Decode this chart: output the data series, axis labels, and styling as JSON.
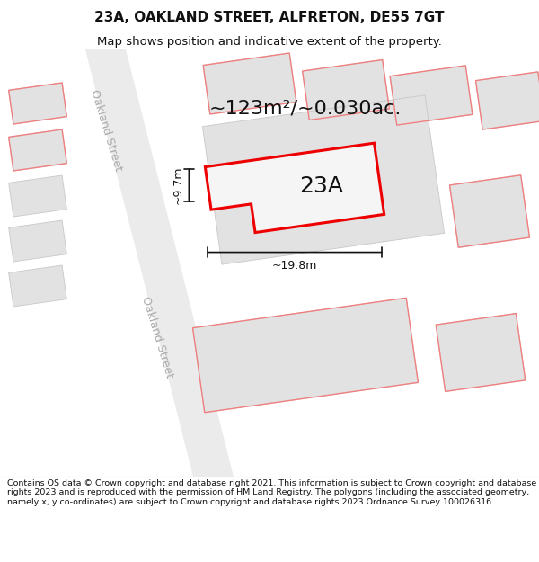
{
  "title_line1": "23A, OAKLAND STREET, ALFRETON, DE55 7GT",
  "title_line2": "Map shows position and indicative extent of the property.",
  "copyright_text": "Contains OS data © Crown copyright and database right 2021. This information is subject to Crown copyright and database rights 2023 and is reproduced with the permission of HM Land Registry. The polygons (including the associated geometry, namely x, y co-ordinates) are subject to Crown copyright and database rights 2023 Ordnance Survey 100026316.",
  "area_text": "~123m²/~0.030ac.",
  "label_23a": "23A",
  "dim_height": "~9.7m",
  "dim_width": "~19.8m",
  "bg_color": "#ffffff",
  "road_fill": "#ebebeb",
  "building_fill": "#e2e2e2",
  "building_edge": "#c8c8c8",
  "red_plot": "#ee0000",
  "red_neighbor": "#f08080",
  "dim_color": "#111111",
  "text_color": "#111111",
  "street_label_color": "#aaaaaa",
  "title_fontsize": 11,
  "subtitle_fontsize": 9.5,
  "area_fontsize": 16,
  "label_fontsize": 18,
  "dim_fontsize": 9,
  "copyright_fontsize": 6.8,
  "street_fontsize": 9
}
